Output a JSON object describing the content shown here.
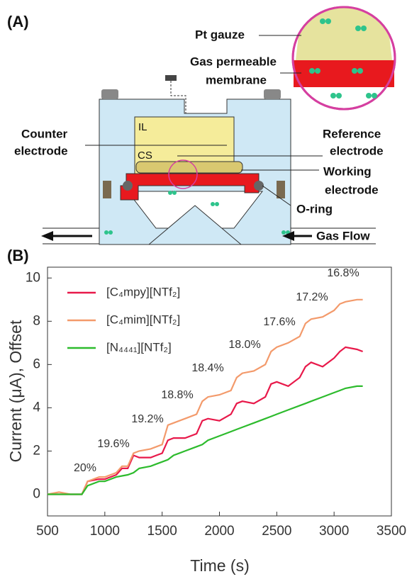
{
  "diagram": {
    "panel_label": "(A)",
    "labels": {
      "pt_gauze": "Pt gauze",
      "membrane": [
        "Gas permeable",
        "membrane"
      ],
      "il": "IL",
      "cs": "CS",
      "counter": [
        "Counter",
        "electrode"
      ],
      "reference": [
        "Reference",
        "electrode"
      ],
      "working": [
        "Working",
        "electrode"
      ],
      "oring": "O-ring",
      "gas_flow": "Gas Flow"
    }
  },
  "chart_data": {
    "type": "line",
    "panel_label": "(B)",
    "x_label": "Time (s)",
    "y_label": "Current (μA), Offset",
    "x": [
      500,
      600,
      700,
      800,
      850,
      950,
      1000,
      1100,
      1150,
      1200,
      1250,
      1300,
      1400,
      1450,
      1500,
      1550,
      1600,
      1700,
      1800,
      1850,
      1900,
      2000,
      2100,
      2150,
      2200,
      2300,
      2400,
      2450,
      2500,
      2600,
      2700,
      2750,
      2800,
      2900,
      3000,
      3050,
      3100,
      3200,
      3250
    ],
    "series": [
      {
        "name": "[C₄mpy][NTf₂]",
        "color": "#e8194a",
        "values": [
          0,
          0,
          0,
          0,
          0.6,
          0.7,
          0.7,
          0.9,
          1.2,
          1.2,
          1.8,
          1.7,
          1.7,
          1.8,
          1.9,
          2.5,
          2.6,
          2.6,
          2.8,
          3.4,
          3.5,
          3.4,
          3.7,
          4.2,
          4.3,
          4.2,
          4.5,
          5.1,
          5.2,
          5.0,
          5.4,
          5.9,
          6.1,
          5.9,
          6.3,
          6.6,
          6.8,
          6.7,
          6.6
        ]
      },
      {
        "name": "[C₄mim][NTf₂]",
        "color": "#f39a6b",
        "values": [
          0,
          0.1,
          0,
          0,
          0.6,
          0.8,
          0.8,
          1.0,
          1.3,
          1.3,
          1.9,
          2.0,
          2.1,
          2.2,
          2.3,
          3.2,
          3.3,
          3.5,
          3.7,
          4.3,
          4.5,
          4.6,
          4.8,
          5.4,
          5.6,
          5.7,
          6.0,
          6.6,
          6.8,
          7.0,
          7.3,
          7.9,
          8.1,
          8.2,
          8.5,
          8.8,
          8.9,
          9.0,
          9.0
        ]
      },
      {
        "name": "[N₄₄₄₁][NTf₂]",
        "color": "#2dbb2d",
        "values": [
          0,
          0,
          0,
          0,
          0.4,
          0.6,
          0.6,
          0.8,
          0.85,
          0.9,
          1.0,
          1.2,
          1.3,
          1.4,
          1.5,
          1.6,
          1.8,
          2.0,
          2.2,
          2.3,
          2.5,
          2.7,
          2.9,
          3.0,
          3.1,
          3.3,
          3.5,
          3.6,
          3.7,
          3.9,
          4.1,
          4.2,
          4.3,
          4.5,
          4.7,
          4.8,
          4.9,
          5.0,
          5.0
        ]
      }
    ],
    "annotations": [
      "20%",
      "19.6%",
      "19.2%",
      "18.8%",
      "18.4%",
      "18.0%",
      "17.6%",
      "17.2%",
      "16.8%"
    ],
    "xlim": [
      500,
      3500
    ],
    "xticks": [
      500,
      1000,
      1500,
      2000,
      2500,
      3000,
      3500
    ],
    "ylim": [
      -1,
      10.5
    ],
    "yticks": [
      0,
      2,
      4,
      6,
      8,
      10
    ]
  }
}
